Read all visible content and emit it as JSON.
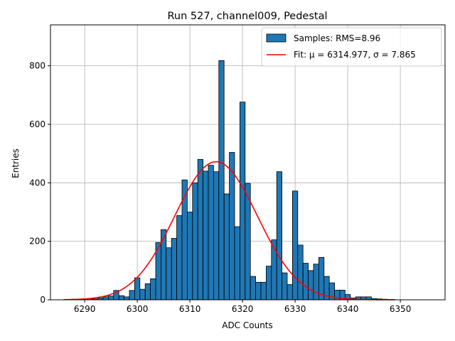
{
  "chart_data": {
    "type": "bar",
    "title": "Run 527, channel009, Pedestal",
    "xlabel": "ADC Counts",
    "ylabel": "Entries",
    "xlim": [
      6283.5,
      6358.5
    ],
    "ylim": [
      0,
      940
    ],
    "xticks": [
      6290,
      6300,
      6310,
      6320,
      6330,
      6340,
      6350
    ],
    "yticks": [
      0,
      200,
      400,
      600,
      800
    ],
    "grid": true,
    "legend_position": "top-right",
    "histogram": {
      "name": "Samples: RMS=8.96",
      "color": "#1f77b4",
      "bin_width": 1,
      "bins": [
        {
          "x": 6288,
          "y": 2
        },
        {
          "x": 6289,
          "y": 1
        },
        {
          "x": 6290,
          "y": 3
        },
        {
          "x": 6291,
          "y": 4
        },
        {
          "x": 6292,
          "y": 3
        },
        {
          "x": 6293,
          "y": 6
        },
        {
          "x": 6294,
          "y": 10
        },
        {
          "x": 6295,
          "y": 13
        },
        {
          "x": 6296,
          "y": 32
        },
        {
          "x": 6297,
          "y": 14
        },
        {
          "x": 6298,
          "y": 10
        },
        {
          "x": 6299,
          "y": 32
        },
        {
          "x": 6300,
          "y": 75
        },
        {
          "x": 6301,
          "y": 36
        },
        {
          "x": 6302,
          "y": 55
        },
        {
          "x": 6303,
          "y": 72
        },
        {
          "x": 6304,
          "y": 196
        },
        {
          "x": 6305,
          "y": 240
        },
        {
          "x": 6306,
          "y": 178
        },
        {
          "x": 6307,
          "y": 210
        },
        {
          "x": 6308,
          "y": 288
        },
        {
          "x": 6309,
          "y": 410
        },
        {
          "x": 6310,
          "y": 300
        },
        {
          "x": 6311,
          "y": 400
        },
        {
          "x": 6312,
          "y": 480
        },
        {
          "x": 6313,
          "y": 440
        },
        {
          "x": 6314,
          "y": 460
        },
        {
          "x": 6315,
          "y": 438
        },
        {
          "x": 6316,
          "y": 818
        },
        {
          "x": 6317,
          "y": 362
        },
        {
          "x": 6318,
          "y": 504
        },
        {
          "x": 6319,
          "y": 250
        },
        {
          "x": 6320,
          "y": 676
        },
        {
          "x": 6321,
          "y": 398
        },
        {
          "x": 6322,
          "y": 80
        },
        {
          "x": 6323,
          "y": 60
        },
        {
          "x": 6324,
          "y": 60
        },
        {
          "x": 6325,
          "y": 115
        },
        {
          "x": 6326,
          "y": 205
        },
        {
          "x": 6327,
          "y": 438
        },
        {
          "x": 6328,
          "y": 92
        },
        {
          "x": 6329,
          "y": 52
        },
        {
          "x": 6330,
          "y": 372
        },
        {
          "x": 6331,
          "y": 187
        },
        {
          "x": 6332,
          "y": 125
        },
        {
          "x": 6333,
          "y": 100
        },
        {
          "x": 6334,
          "y": 122
        },
        {
          "x": 6335,
          "y": 145
        },
        {
          "x": 6336,
          "y": 80
        },
        {
          "x": 6337,
          "y": 58
        },
        {
          "x": 6338,
          "y": 33
        },
        {
          "x": 6339,
          "y": 33
        },
        {
          "x": 6340,
          "y": 18
        },
        {
          "x": 6341,
          "y": 6
        },
        {
          "x": 6342,
          "y": 10
        },
        {
          "x": 6343,
          "y": 10
        },
        {
          "x": 6344,
          "y": 10
        },
        {
          "x": 6345,
          "y": 4
        },
        {
          "x": 6346,
          "y": 3
        },
        {
          "x": 6347,
          "y": 2
        },
        {
          "x": 6348,
          "y": 1
        }
      ]
    },
    "fit": {
      "name": "Fit: μ = 6314.977, σ = 7.865",
      "color": "#ff0000",
      "mu": 6314.977,
      "sigma": 7.865,
      "amplitude": 472,
      "x_range": [
        6286,
        6349
      ]
    }
  }
}
